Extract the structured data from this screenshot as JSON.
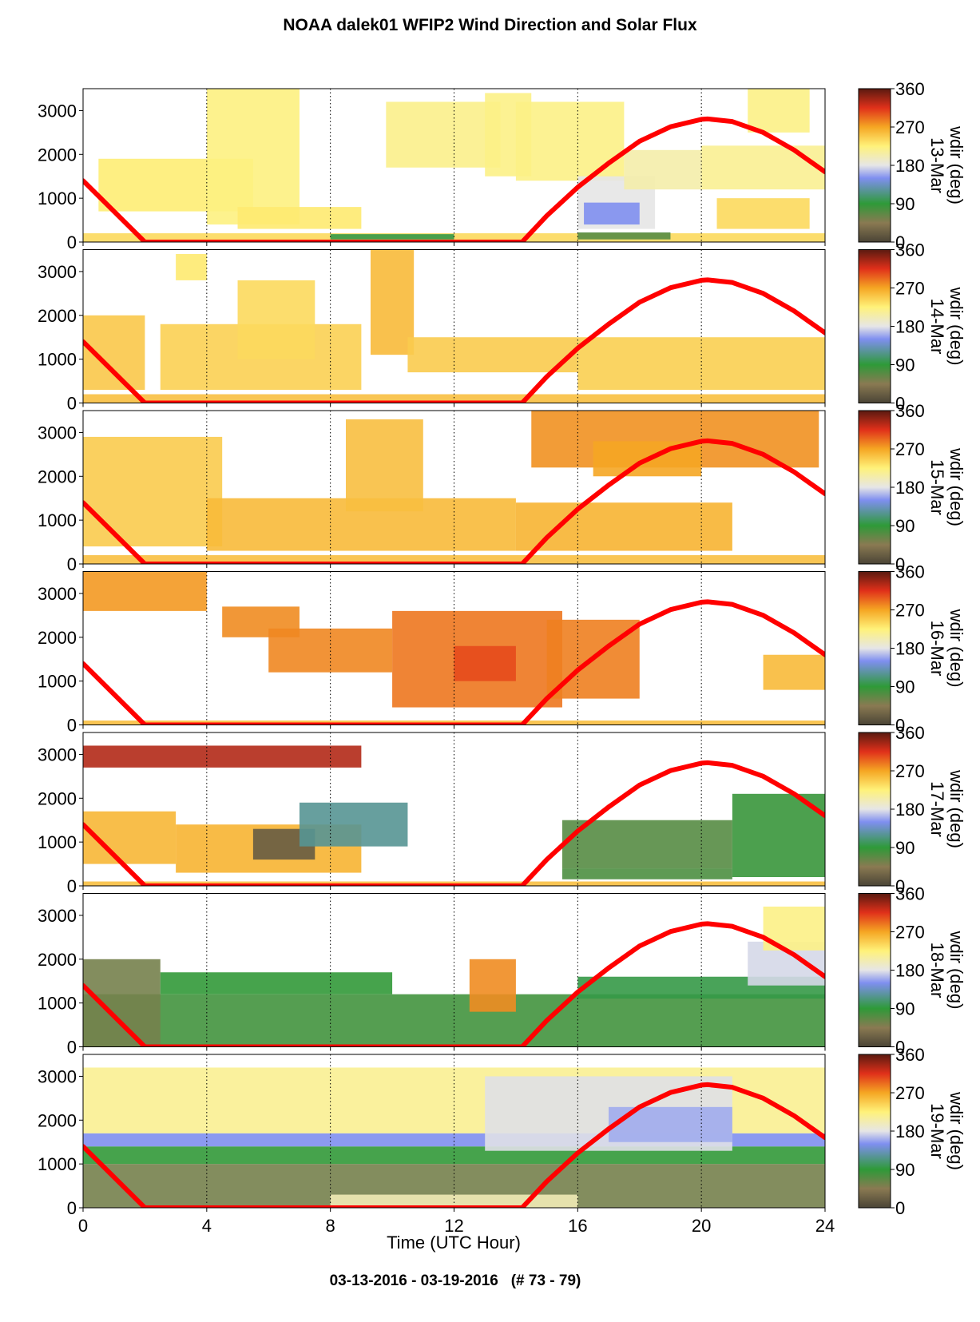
{
  "title": "NOAA dalek01 WFIP2 Wind Direction and Solar Flux",
  "footer": "03-13-2016 - 03-19-2016   (# 73 - 79)",
  "colorbar": {
    "label": "wdir (deg)",
    "ticks": [
      0,
      90,
      180,
      270,
      360
    ],
    "stops": [
      {
        "deg": 0,
        "color": "#4a4436"
      },
      {
        "deg": 45,
        "color": "#8a7a52"
      },
      {
        "deg": 90,
        "color": "#2e9a38"
      },
      {
        "deg": 150,
        "color": "#7f8ff0"
      },
      {
        "deg": 180,
        "color": "#e6e6e6"
      },
      {
        "deg": 225,
        "color": "#fff27a"
      },
      {
        "deg": 270,
        "color": "#f5a623"
      },
      {
        "deg": 315,
        "color": "#e0301a"
      },
      {
        "deg": 360,
        "color": "#5a1a10"
      }
    ]
  },
  "colors": {
    "solar_flux": "#ff0000"
  },
  "chart_data": {
    "type": "heatmap",
    "xlabel": "Time (UTC Hour)",
    "xlim": [
      0,
      24
    ],
    "x_ticks": [
      0,
      4,
      8,
      12,
      16,
      20,
      24
    ],
    "ylim": [
      0,
      3500
    ],
    "y_ticks": [
      0,
      1000,
      2000,
      3000
    ],
    "grid": "vertical dotted lines every 4 hours",
    "solar_flux": {
      "x": [
        0,
        2,
        14.2,
        15,
        16,
        17,
        18,
        19,
        20,
        20.2,
        21,
        22,
        23,
        24
      ],
      "y": [
        1400,
        0,
        0,
        600,
        1250,
        1800,
        2300,
        2630,
        2800,
        2810,
        2750,
        2500,
        2100,
        1600
      ]
    },
    "panels": [
      {
        "date": "13-Mar",
        "blocks": [
          {
            "x": [
              0,
              24
            ],
            "y": [
              0,
              200
            ],
            "wdir": 240
          },
          {
            "x": [
              8,
              12
            ],
            "y": [
              60,
              180
            ],
            "wdir": 95
          },
          {
            "x": [
              16,
              19
            ],
            "y": [
              60,
              220
            ],
            "wdir": 70
          },
          {
            "x": [
              0.5,
              5.5
            ],
            "y": [
              700,
              1900
            ],
            "wdir": 228
          },
          {
            "x": [
              4,
              7
            ],
            "y": [
              400,
              3500
            ],
            "wdir": 222
          },
          {
            "x": [
              5,
              9
            ],
            "y": [
              300,
              800
            ],
            "wdir": 230
          },
          {
            "x": [
              9.8,
              13.5
            ],
            "y": [
              1700,
              3200
            ],
            "wdir": 218
          },
          {
            "x": [
              13,
              14.5
            ],
            "y": [
              1500,
              3400
            ],
            "wdir": 220
          },
          {
            "x": [
              14,
              17.5
            ],
            "y": [
              1400,
              3200
            ],
            "wdir": 220
          },
          {
            "x": [
              16,
              18.5
            ],
            "y": [
              300,
              1500
            ],
            "wdir": 180
          },
          {
            "x": [
              16.2,
              18
            ],
            "y": [
              400,
              900
            ],
            "wdir": 150
          },
          {
            "x": [
              17.5,
              20
            ],
            "y": [
              1200,
              2100
            ],
            "wdir": 205
          },
          {
            "x": [
              20,
              24
            ],
            "y": [
              1200,
              2200
            ],
            "wdir": 215
          },
          {
            "x": [
              21.5,
              23.5
            ],
            "y": [
              2500,
              3500
            ],
            "wdir": 220
          },
          {
            "x": [
              20.5,
              23.5
            ],
            "y": [
              300,
              1000
            ],
            "wdir": 240
          }
        ]
      },
      {
        "date": "14-Mar",
        "blocks": [
          {
            "x": [
              0,
              24
            ],
            "y": [
              0,
              200
            ],
            "wdir": 255
          },
          {
            "x": [
              0,
              2
            ],
            "y": [
              300,
              2000
            ],
            "wdir": 250
          },
          {
            "x": [
              3,
              4
            ],
            "y": [
              2800,
              3400
            ],
            "wdir": 230
          },
          {
            "x": [
              2.5,
              9
            ],
            "y": [
              300,
              1800
            ],
            "wdir": 245
          },
          {
            "x": [
              5,
              7.5
            ],
            "y": [
              1000,
              2800
            ],
            "wdir": 240
          },
          {
            "x": [
              9.3,
              10.7
            ],
            "y": [
              1100,
              3500
            ],
            "wdir": 258
          },
          {
            "x": [
              10.5,
              16
            ],
            "y": [
              700,
              1500
            ],
            "wdir": 248
          },
          {
            "x": [
              16,
              24
            ],
            "y": [
              300,
              1500
            ],
            "wdir": 246
          }
        ]
      },
      {
        "date": "15-Mar",
        "blocks": [
          {
            "x": [
              0,
              24
            ],
            "y": [
              0,
              200
            ],
            "wdir": 255
          },
          {
            "x": [
              0,
              4.5
            ],
            "y": [
              400,
              2900
            ],
            "wdir": 248
          },
          {
            "x": [
              4,
              14
            ],
            "y": [
              300,
              1500
            ],
            "wdir": 258
          },
          {
            "x": [
              8.5,
              11
            ],
            "y": [
              1200,
              3300
            ],
            "wdir": 255
          },
          {
            "x": [
              14,
              21
            ],
            "y": [
              300,
              1400
            ],
            "wdir": 262
          },
          {
            "x": [
              14.5,
              23.8
            ],
            "y": [
              2200,
              3500
            ],
            "wdir": 278
          },
          {
            "x": [
              16.5,
              20
            ],
            "y": [
              2000,
              2800
            ],
            "wdir": 270
          }
        ]
      },
      {
        "date": "16-Mar",
        "blocks": [
          {
            "x": [
              0,
              24
            ],
            "y": [
              0,
              100
            ],
            "wdir": 255
          },
          {
            "x": [
              0,
              4
            ],
            "y": [
              2600,
              3500
            ],
            "wdir": 275
          },
          {
            "x": [
              4.5,
              7
            ],
            "y": [
              2000,
              2700
            ],
            "wdir": 280
          },
          {
            "x": [
              6,
              10
            ],
            "y": [
              1200,
              2200
            ],
            "wdir": 282
          },
          {
            "x": [
              10,
              15.5
            ],
            "y": [
              400,
              2600
            ],
            "wdir": 288
          },
          {
            "x": [
              12,
              14
            ],
            "y": [
              1000,
              1800
            ],
            "wdir": 305
          },
          {
            "x": [
              15,
              18
            ],
            "y": [
              600,
              2400
            ],
            "wdir": 285
          },
          {
            "x": [
              22,
              24
            ],
            "y": [
              800,
              1600
            ],
            "wdir": 258
          }
        ]
      },
      {
        "date": "17-Mar",
        "blocks": [
          {
            "x": [
              0,
              24
            ],
            "y": [
              0,
              100
            ],
            "wdir": 255
          },
          {
            "x": [
              0,
              9
            ],
            "y": [
              2700,
              3200
            ],
            "wdir": 330
          },
          {
            "x": [
              0,
              3
            ],
            "y": [
              500,
              1700
            ],
            "wdir": 260
          },
          {
            "x": [
              3,
              9
            ],
            "y": [
              300,
              1400
            ],
            "wdir": 262
          },
          {
            "x": [
              5.5,
              7.5
            ],
            "y": [
              600,
              1300
            ],
            "wdir": 20
          },
          {
            "x": [
              7,
              10.5
            ],
            "y": [
              900,
              1900
            ],
            "wdir": 120
          },
          {
            "x": [
              15.5,
              21
            ],
            "y": [
              400,
              1500
            ],
            "wdir": 70
          },
          {
            "x": [
              21,
              24
            ],
            "y": [
              200,
              2100
            ],
            "wdir": 85
          },
          {
            "x": [
              15.5,
              21
            ],
            "y": [
              150,
              400
            ],
            "wdir": 75
          }
        ]
      },
      {
        "date": "18-Mar",
        "blocks": [
          {
            "x": [
              0,
              24
            ],
            "y": [
              0,
              1200
            ],
            "wdir": 80
          },
          {
            "x": [
              0,
              2.5
            ],
            "y": [
              0,
              2000
            ],
            "wdir": 55
          },
          {
            "x": [
              2.5,
              10
            ],
            "y": [
              1200,
              1700
            ],
            "wdir": 88
          },
          {
            "x": [
              12.5,
              14
            ],
            "y": [
              800,
              2000
            ],
            "wdir": 280
          },
          {
            "x": [
              16,
              24
            ],
            "y": [
              1100,
              1600
            ],
            "wdir": 95
          },
          {
            "x": [
              21.5,
              24
            ],
            "y": [
              1400,
              2400
            ],
            "wdir": 175
          },
          {
            "x": [
              22,
              24
            ],
            "y": [
              2200,
              3200
            ],
            "wdir": 220
          }
        ]
      },
      {
        "date": "19-Mar",
        "blocks": [
          {
            "x": [
              0,
              24
            ],
            "y": [
              0,
              1000
            ],
            "wdir": 55
          },
          {
            "x": [
              0,
              24
            ],
            "y": [
              1000,
              1400
            ],
            "wdir": 88
          },
          {
            "x": [
              0,
              24
            ],
            "y": [
              1400,
              1700
            ],
            "wdir": 150
          },
          {
            "x": [
              0,
              24
            ],
            "y": [
              1700,
              3200
            ],
            "wdir": 215
          },
          {
            "x": [
              13,
              21
            ],
            "y": [
              1300,
              3000
            ],
            "wdir": 178
          },
          {
            "x": [
              17,
              21
            ],
            "y": [
              1500,
              2300
            ],
            "wdir": 160
          },
          {
            "x": [
              8,
              16
            ],
            "y": [
              0,
              300
            ],
            "wdir": 200
          }
        ]
      }
    ]
  }
}
